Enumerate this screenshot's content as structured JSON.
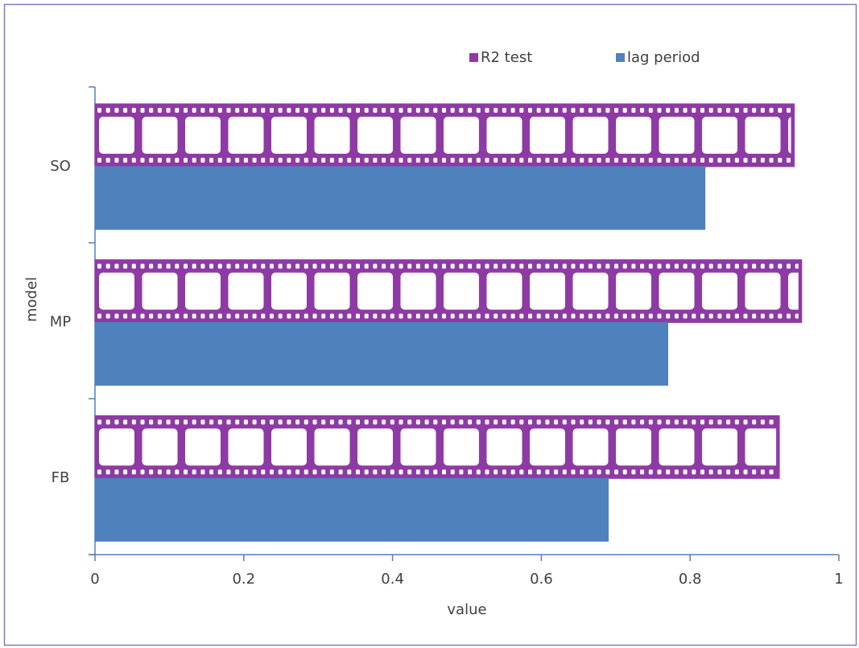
{
  "chart_data": {
    "type": "bar",
    "orientation": "horizontal",
    "categories": [
      "FB",
      "MP",
      "SO"
    ],
    "series": [
      {
        "name": "R2 test",
        "color": "#8e3aa5",
        "values": [
          0.92,
          0.95,
          0.94
        ]
      },
      {
        "name": "lag period",
        "color": "#4f81bd",
        "values": [
          0.69,
          0.77,
          0.82
        ]
      }
    ],
    "xlabel": "value",
    "ylabel": "model",
    "xlim": [
      0,
      1
    ],
    "xticks": [
      0,
      0.2,
      0.4,
      0.6,
      0.8,
      1
    ],
    "legend": "top"
  }
}
